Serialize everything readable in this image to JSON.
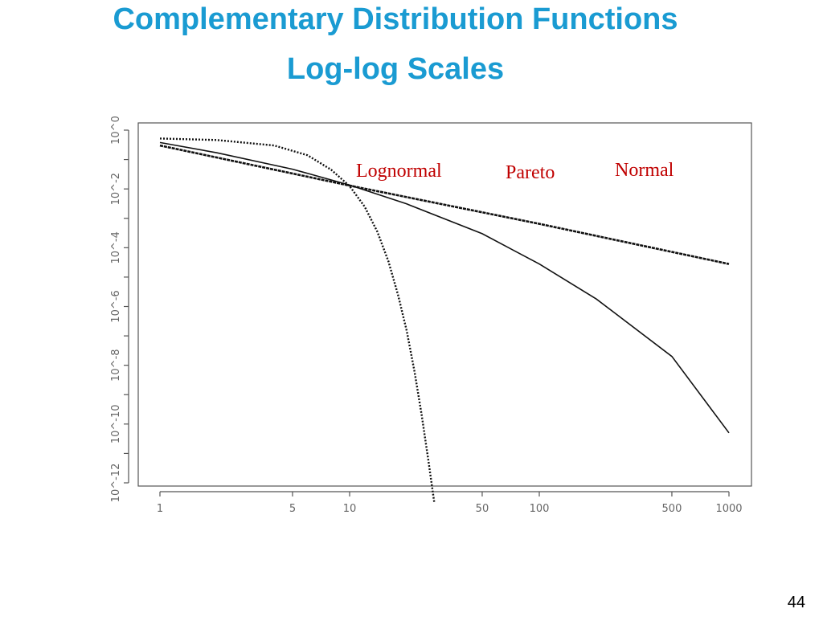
{
  "slide": {
    "title_line1": "Complementary Distribution Functions",
    "title_line2": "Log-log Scales",
    "page_number": "44",
    "title_color": "#1a9bd2",
    "label_color": "#c00000"
  },
  "chart_data": {
    "type": "line",
    "title": "",
    "xlabel": "",
    "ylabel": "",
    "x_scale": "log",
    "y_scale": "log",
    "xlim": [
      1,
      1000
    ],
    "ylim": [
      1e-12,
      1
    ],
    "x_ticks": [
      {
        "value": 1,
        "label": "1"
      },
      {
        "value": 5,
        "label": "5"
      },
      {
        "value": 10,
        "label": "10"
      },
      {
        "value": 50,
        "label": "50"
      },
      {
        "value": 100,
        "label": "100"
      },
      {
        "value": 500,
        "label": "500"
      },
      {
        "value": 1000,
        "label": "1000"
      }
    ],
    "y_ticks": [
      {
        "value": 1,
        "label": "10^0"
      },
      {
        "value": 0.1,
        "label": ""
      },
      {
        "value": 0.01,
        "label": "10^-2"
      },
      {
        "value": 0.001,
        "label": ""
      },
      {
        "value": 0.0001,
        "label": "10^-4"
      },
      {
        "value": 1e-05,
        "label": ""
      },
      {
        "value": 1e-06,
        "label": "10^-6"
      },
      {
        "value": 1e-07,
        "label": ""
      },
      {
        "value": 1e-08,
        "label": "10^-8"
      },
      {
        "value": 1e-09,
        "label": ""
      },
      {
        "value": 1e-10,
        "label": "10^-10"
      },
      {
        "value": 1e-11,
        "label": ""
      },
      {
        "value": 1e-12,
        "label": "10^-12"
      }
    ],
    "grid": false,
    "series": [
      {
        "name": "Pareto",
        "line_style": "dashed",
        "x": [
          1,
          10,
          100,
          1000
        ],
        "y": [
          0.3,
          0.013,
          0.00065,
          2.8e-05
        ]
      },
      {
        "name": "Lognormal",
        "line_style": "solid",
        "x": [
          1,
          2,
          5,
          10,
          20,
          50,
          100,
          200,
          500,
          1000
        ],
        "y": [
          0.38,
          0.17,
          0.047,
          0.0135,
          0.0031,
          0.0003,
          2.8e-05,
          1.8e-06,
          2e-08,
          5e-11
        ]
      },
      {
        "name": "Normal",
        "line_style": "dotted",
        "x": [
          1,
          2,
          4,
          6,
          8,
          10,
          12,
          14,
          16,
          18,
          20,
          22,
          24,
          26,
          28
        ],
        "y": [
          0.52,
          0.46,
          0.3,
          0.14,
          0.045,
          0.0125,
          0.0025,
          0.00035,
          3.5e-05,
          2.5e-06,
          1.5e-07,
          6e-09,
          2e-10,
          6e-12,
          2e-13
        ]
      }
    ],
    "annotations": [
      {
        "text": "Lognormal",
        "series": "Lognormal"
      },
      {
        "text": "Pareto",
        "series": "Pareto"
      },
      {
        "text": "Normal",
        "series": "Normal"
      }
    ]
  }
}
